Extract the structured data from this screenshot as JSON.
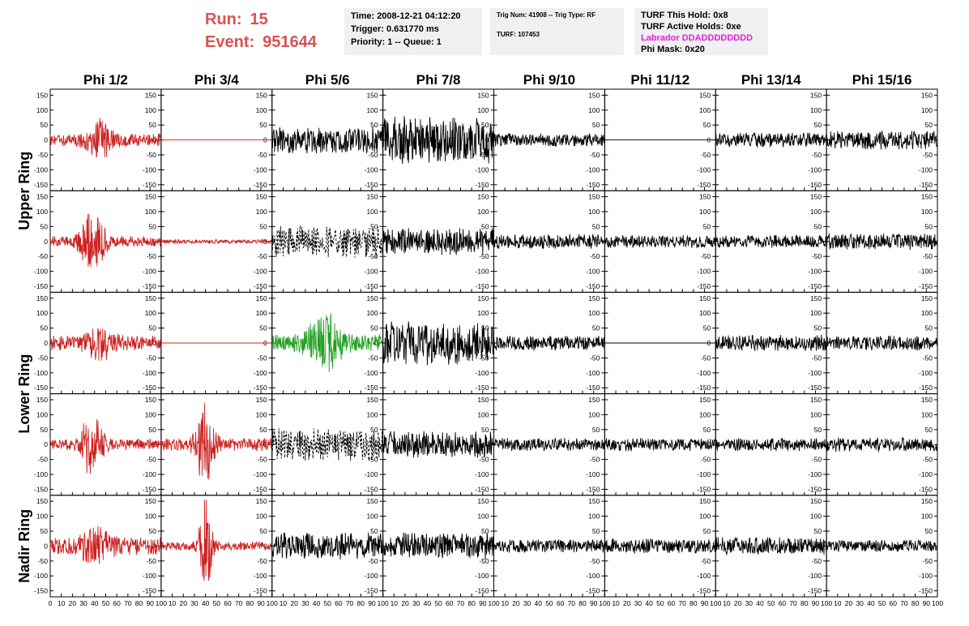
{
  "header": {
    "run_label": "Run:",
    "run_value": "15",
    "event_label": "Event:",
    "event_value": "951644"
  },
  "info_time": {
    "time": "Time: 2008-12-21 04:12:20",
    "trigger": "Trigger: 0.631770 ms",
    "priority": "Priority: 1 -- Queue: 1"
  },
  "info_trig": {
    "trig": "Trig Num: 41908 -- Trig Type: RF",
    "turf": "TURF: 107453"
  },
  "info_turf": {
    "hold": "TURF This Hold: 0x8",
    "active": "TURF Active Holds: 0xe",
    "labrador": "Labrador DDADDDDDDDD",
    "phimask": "Phi Mask: 0x20"
  },
  "colors": {
    "red": "#cc2020",
    "black": "#000000",
    "green": "#20a020",
    "header_red": "#d9534f",
    "magenta": "#e020e0",
    "info_bg": "#f0f0f0"
  },
  "chart_data": {
    "type": "line",
    "title": "",
    "columns": [
      "Phi 1/2",
      "Phi 3/4",
      "Phi 5/6",
      "Phi 7/8",
      "Phi 9/10",
      "Phi 11/12",
      "Phi 13/14",
      "Phi 15/16"
    ],
    "rows": [
      "Upper Ring",
      "Upper Ring",
      "Lower Ring",
      "Lower Ring",
      "Nadir Ring"
    ],
    "row_labels": [
      {
        "label": "Upper Ring",
        "rows": [
          0,
          1
        ]
      },
      {
        "label": "Lower Ring",
        "rows": [
          2,
          3
        ]
      },
      {
        "label": "Nadir Ring",
        "rows": [
          4
        ]
      }
    ],
    "xlim": [
      0,
      100
    ],
    "ylim": [
      -170,
      170
    ],
    "x_ticks": [
      0,
      10,
      20,
      30,
      40,
      50,
      60,
      70,
      80,
      90,
      100
    ],
    "y_ticks": [
      -150,
      -100,
      -50,
      0,
      50,
      100,
      150
    ],
    "grid": false,
    "panels": [
      [
        {
          "color": "red",
          "amp": 22,
          "burst_center": 45,
          "burst_amp": 55,
          "burst_width": 12,
          "seed": 11
        },
        {
          "color": "red",
          "amp": 0,
          "seed": 12
        },
        {
          "color": "black",
          "amp": 45,
          "seed": 13
        },
        {
          "color": "black",
          "amp": 80,
          "seed": 14
        },
        {
          "color": "black",
          "amp": 22,
          "seed": 15
        },
        {
          "color": "black",
          "amp": 0,
          "seed": 16
        },
        {
          "color": "black",
          "amp": 25,
          "seed": 17
        },
        {
          "color": "black",
          "amp": 32,
          "seed": 18
        }
      ],
      [
        {
          "color": "red",
          "amp": 18,
          "burst_center": 38,
          "burst_amp": 110,
          "burst_width": 10,
          "seed": 21
        },
        {
          "color": "red",
          "amp": 7,
          "seed": 22
        },
        {
          "color": "black",
          "amp": 55,
          "dashed": true,
          "seed": 23
        },
        {
          "color": "black",
          "amp": 45,
          "seed": 24
        },
        {
          "color": "black",
          "amp": 25,
          "seed": 25
        },
        {
          "color": "black",
          "amp": 22,
          "seed": 26
        },
        {
          "color": "black",
          "amp": 22,
          "seed": 27
        },
        {
          "color": "black",
          "amp": 28,
          "seed": 28
        }
      ],
      [
        {
          "color": "red",
          "amp": 25,
          "burst_center": 45,
          "burst_amp": 40,
          "burst_width": 12,
          "seed": 31
        },
        {
          "color": "red",
          "amp": 0,
          "seed": 32
        },
        {
          "color": "green",
          "amp": 30,
          "burst_center": 48,
          "burst_amp": 90,
          "burst_width": 14,
          "seed": 33
        },
        {
          "color": "black",
          "amp": 75,
          "seed": 34
        },
        {
          "color": "black",
          "amp": 25,
          "seed": 35
        },
        {
          "color": "black",
          "amp": 0,
          "seed": 36
        },
        {
          "color": "black",
          "amp": 28,
          "seed": 37
        },
        {
          "color": "black",
          "amp": 25,
          "seed": 38
        }
      ],
      [
        {
          "color": "red",
          "amp": 20,
          "burst_center": 38,
          "burst_amp": 100,
          "burst_width": 10,
          "seed": 41
        },
        {
          "color": "red",
          "amp": 22,
          "burst_center": 40,
          "burst_amp": 150,
          "burst_width": 8,
          "seed": 42
        },
        {
          "color": "black",
          "amp": 55,
          "dashed": true,
          "seed": 43
        },
        {
          "color": "black",
          "amp": 45,
          "seed": 44
        },
        {
          "color": "black",
          "amp": 22,
          "seed": 45
        },
        {
          "color": "black",
          "amp": 22,
          "seed": 46
        },
        {
          "color": "black",
          "amp": 22,
          "seed": 47
        },
        {
          "color": "black",
          "amp": 25,
          "seed": 48
        }
      ],
      [
        {
          "color": "red",
          "amp": 30,
          "burst_center": 40,
          "burst_amp": 50,
          "burst_width": 14,
          "seed": 51
        },
        {
          "color": "red",
          "amp": 15,
          "burst_center": 40,
          "burst_amp": 160,
          "burst_width": 6,
          "seed": 52
        },
        {
          "color": "black",
          "amp": 45,
          "seed": 53
        },
        {
          "color": "black",
          "amp": 45,
          "seed": 54
        },
        {
          "color": "black",
          "amp": 22,
          "seed": 55
        },
        {
          "color": "black",
          "amp": 25,
          "seed": 56
        },
        {
          "color": "black",
          "amp": 30,
          "seed": 57
        },
        {
          "color": "black",
          "amp": 20,
          "seed": 58
        }
      ]
    ]
  }
}
